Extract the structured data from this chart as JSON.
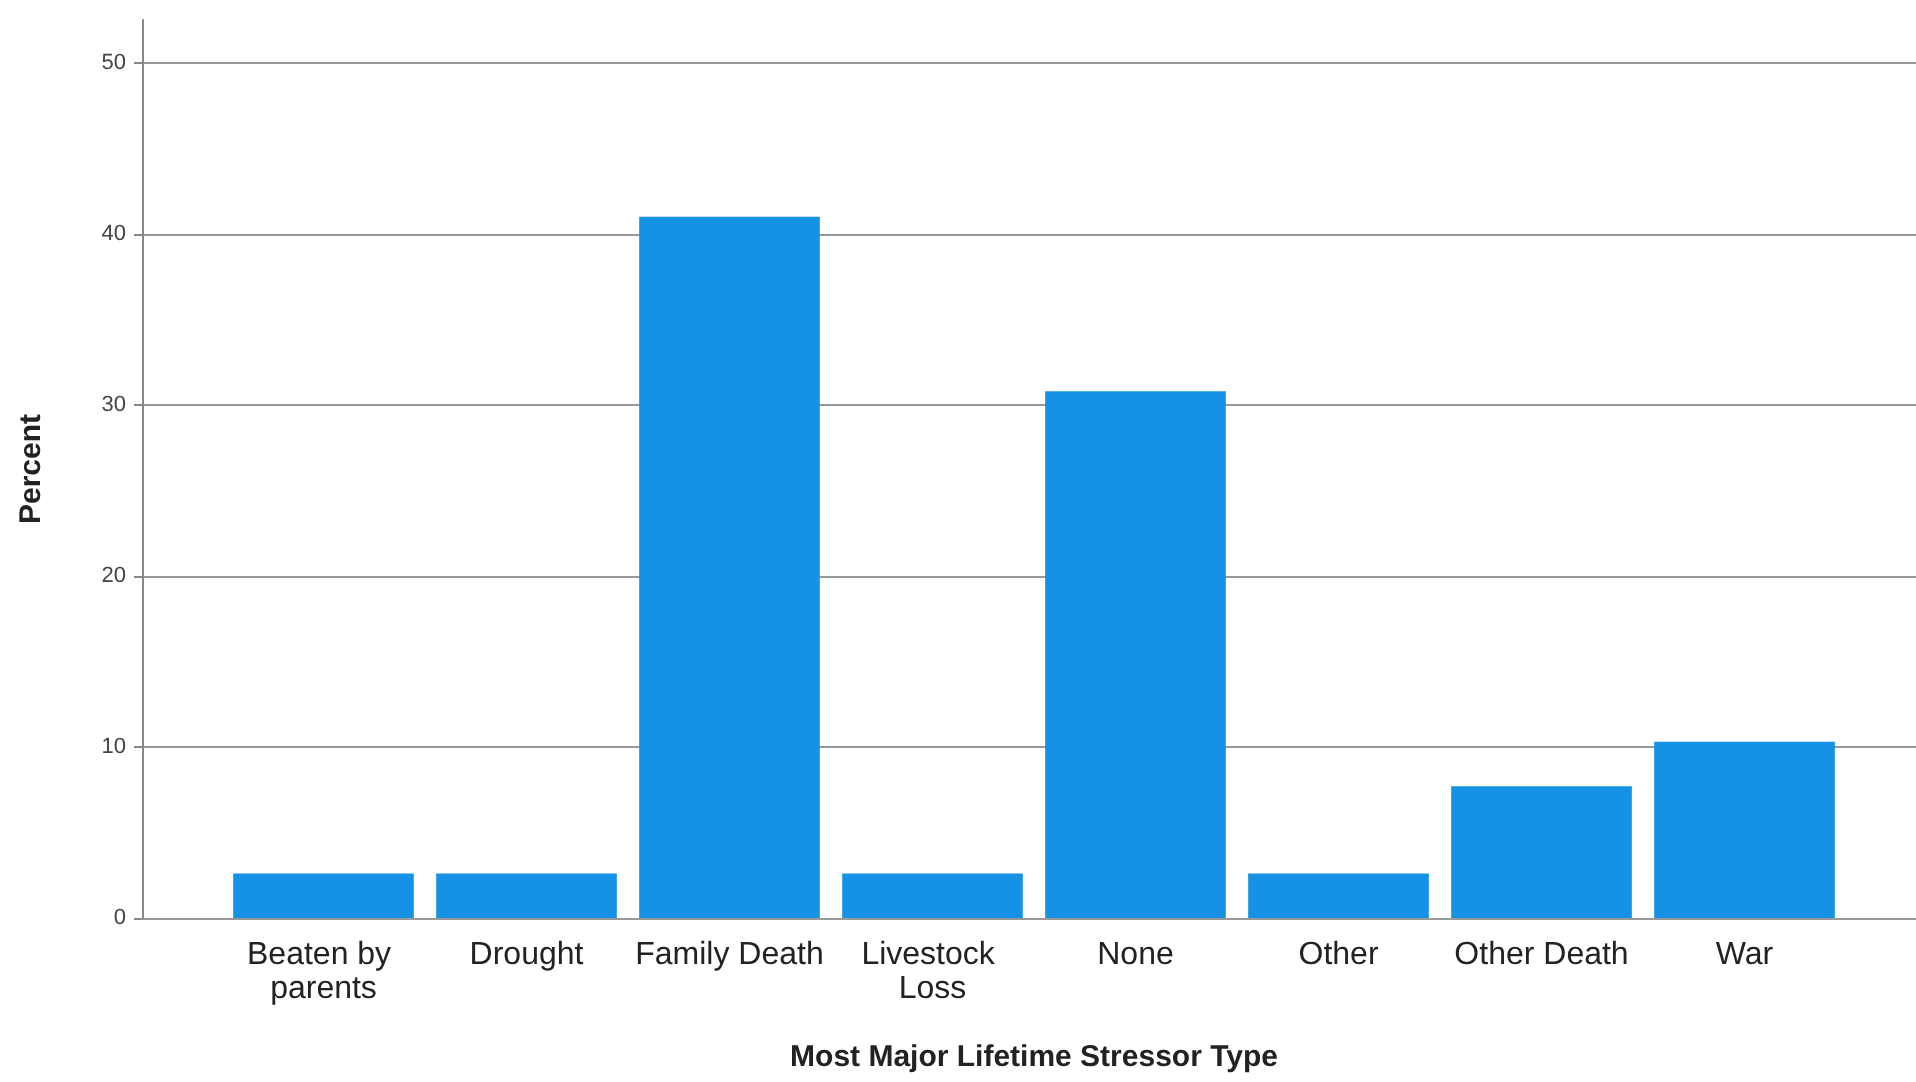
{
  "chart_data": {
    "type": "bar",
    "xlabel": "Most Major Lifetime Stressor Type",
    "ylabel": "Percent",
    "categories": [
      "Beaten by parents",
      "Drought",
      "Family Death",
      "Livestock Loss",
      "None",
      "Other",
      "Other Death",
      "War"
    ],
    "values": [
      2.6,
      2.6,
      41.0,
      2.6,
      30.8,
      2.6,
      7.7,
      10.3
    ],
    "color": "#1592e6",
    "ylim": [
      0,
      52.5
    ],
    "yticks": [
      0,
      10,
      20,
      30,
      40,
      50
    ],
    "grid": "y"
  }
}
